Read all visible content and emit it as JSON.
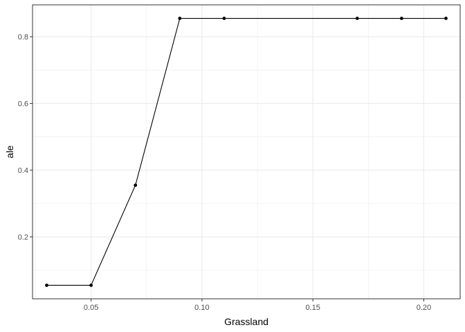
{
  "chart_data": {
    "type": "line",
    "title": "",
    "xlabel": "Grassland",
    "ylabel": "ale",
    "xlim": [
      0.0236,
      0.2164
    ],
    "ylim": [
      0.0145,
      0.8955
    ],
    "x_ticks": [
      0.05,
      0.1,
      0.15,
      0.2
    ],
    "x_tick_labels": [
      "0.05",
      "0.10",
      "0.15",
      "0.20"
    ],
    "y_ticks": [
      0.2,
      0.4,
      0.6,
      0.8
    ],
    "y_tick_labels": [
      "0.2",
      "0.4",
      "0.6",
      "0.8"
    ],
    "grid": true,
    "series": [
      {
        "x": [
          0.03,
          0.05,
          0.07,
          0.09,
          0.11,
          0.17,
          0.19,
          0.21
        ],
        "y": [
          0.055,
          0.055,
          0.355,
          0.855,
          0.855,
          0.855,
          0.855,
          0.855
        ]
      }
    ],
    "colors": {
      "line": "#000000",
      "point": "#000000",
      "grid": "#ebebeb",
      "panel_border": "#333333"
    }
  }
}
